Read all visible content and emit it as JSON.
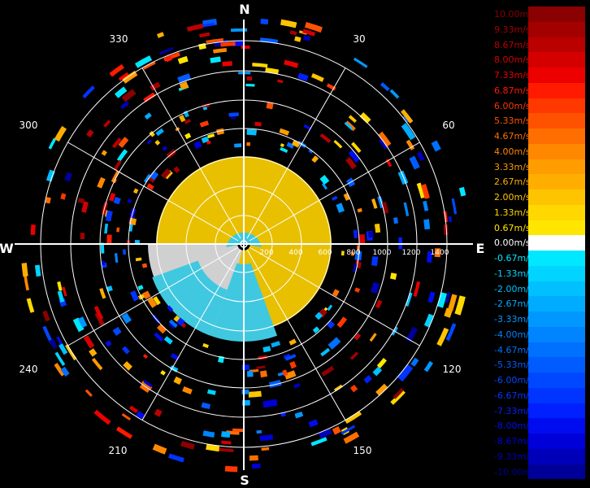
{
  "chart_data": {
    "type": "polar-radar",
    "compass": {
      "north": "N",
      "east": "E",
      "south": "S",
      "west": "W"
    },
    "bearing_labels": [
      "30",
      "60",
      "120",
      "150",
      "210",
      "240",
      "300",
      "330"
    ],
    "range_ticks": [
      "200",
      "400",
      "600",
      "800",
      "1000",
      "1200",
      "1400"
    ],
    "legend": [
      {
        "label": "10.00m/s",
        "color": "#8b0000"
      },
      {
        "label": "9.33m/s",
        "color": "#a30000"
      },
      {
        "label": "8.67m/s",
        "color": "#bb0000"
      },
      {
        "label": "8.00m/s",
        "color": "#d40000"
      },
      {
        "label": "7.33m/s",
        "color": "#ec0000"
      },
      {
        "label": "6.87m/s",
        "color": "#ff1a00"
      },
      {
        "label": "6.00m/s",
        "color": "#ff3800"
      },
      {
        "label": "5.33m/s",
        "color": "#ff5200"
      },
      {
        "label": "4.67m/s",
        "color": "#ff6e00"
      },
      {
        "label": "4.00m/s",
        "color": "#ff8800"
      },
      {
        "label": "3.33m/s",
        "color": "#ff9c00"
      },
      {
        "label": "2.67m/s",
        "color": "#ffae00"
      },
      {
        "label": "2.00m/s",
        "color": "#ffc400"
      },
      {
        "label": "1.33m/s",
        "color": "#ffd800"
      },
      {
        "label": "0.67m/s",
        "color": "#ffe600"
      },
      {
        "label": "0.00m/s",
        "color": "#ffffff"
      },
      {
        "label": "-0.67m/s",
        "color": "#00e8ff"
      },
      {
        "label": "-1.33m/s",
        "color": "#00d4ff"
      },
      {
        "label": "-2.00m/s",
        "color": "#00c0ff"
      },
      {
        "label": "-2.67m/s",
        "color": "#00acff"
      },
      {
        "label": "-3.33m/s",
        "color": "#0098ff"
      },
      {
        "label": "-4.00m/s",
        "color": "#0084ff"
      },
      {
        "label": "-4.67m/s",
        "color": "#0070ff"
      },
      {
        "label": "-5.33m/s",
        "color": "#005cff"
      },
      {
        "label": "-6.00m/s",
        "color": "#0048ff"
      },
      {
        "label": "-6.67m/s",
        "color": "#0034ff"
      },
      {
        "label": "-7.33m/s",
        "color": "#0020ff"
      },
      {
        "label": "-8.00m/s",
        "color": "#000cf0"
      },
      {
        "label": "-8.67m/s",
        "color": "#0000d8"
      },
      {
        "label": "-9.33m/s",
        "color": "#0000b8"
      },
      {
        "label": "-10.00m/s",
        "color": "#000098"
      }
    ],
    "echo_core": {
      "color": "#e8c000",
      "approaching_color": "#40c8e0",
      "clear_color": "#d0d0d0"
    }
  }
}
